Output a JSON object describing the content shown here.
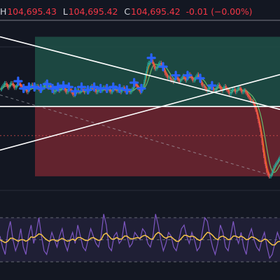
{
  "legend": {
    "high_label": "H",
    "high_value": "104,695.43",
    "low_label": "L",
    "low_value": "104,695.42",
    "close_label": "C",
    "close_value": "104,695.42",
    "change": "-0.01 (−0.00%)"
  },
  "colors": {
    "background": "#131722",
    "up": "#26a69a",
    "down": "#ef5350",
    "legend_value": "#f23645",
    "trendline": "#ffffff",
    "marker": "#2962ff",
    "oscillator_fast": "#7e57c2",
    "oscillator_slow": "#f7c548",
    "ma_fast": "#f57c00",
    "ma_slow": "#66bb6a",
    "profit_zone": "#1e4d45",
    "loss_zone": "#6b2530"
  },
  "chart_data": [
    {
      "type": "line",
      "panel": "price",
      "closes": [
        62,
        62,
        63,
        64,
        65,
        66,
        66,
        65,
        64,
        63,
        64,
        65,
        66,
        66,
        65,
        64,
        63,
        63,
        64,
        65,
        66,
        66,
        65,
        64,
        63,
        62,
        61,
        62,
        62,
        61,
        60,
        61,
        62,
        63,
        64,
        65,
        64,
        63,
        62,
        63,
        64,
        64,
        63,
        62,
        61,
        61,
        62,
        63,
        64,
        65,
        66,
        65,
        64,
        63,
        64,
        64,
        63,
        62,
        61,
        60,
        60,
        61,
        62,
        63,
        62,
        61,
        62,
        62,
        63,
        63,
        63,
        62,
        61,
        60,
        60,
        61,
        62,
        62,
        61,
        60,
        59,
        58,
        58,
        59,
        60,
        61,
        61,
        60,
        60,
        61,
        62,
        62,
        61,
        60,
        61,
        62,
        61,
        60,
        61,
        62,
        63,
        64,
        63,
        62,
        62,
        61,
        60,
        60,
        61,
        62,
        62,
        61,
        61,
        62,
        63,
        63,
        62,
        61,
        61,
        62,
        62,
        61,
        60,
        60,
        61,
        62,
        63,
        63,
        62,
        61,
        61,
        62,
        61,
        60,
        61,
        62,
        63,
        62,
        61,
        60,
        60,
        61,
        61,
        60,
        60,
        61,
        62,
        63,
        65,
        66,
        65,
        64,
        63,
        62,
        61,
        60,
        61,
        62,
        64,
        67,
        70,
        73,
        76,
        79,
        80,
        80,
        81,
        82,
        81,
        79,
        77,
        76,
        76,
        77,
        78,
        79,
        80,
        80,
        79,
        78,
        76,
        75,
        73,
        72,
        71,
        70,
        70,
        70,
        69,
        68,
        68,
        67,
        68,
        69,
        70,
        70,
        69,
        68,
        67,
        68,
        69,
        70,
        71,
        70,
        69,
        68,
        69,
        70,
        71,
        72,
        71,
        70,
        69,
        68,
        68,
        69,
        70,
        71,
        72,
        71,
        69,
        68,
        66,
        65,
        64,
        64,
        63,
        62,
        61,
        61,
        62,
        63,
        64,
        64,
        63,
        62,
        61,
        61,
        62,
        63,
        64,
        65,
        64,
        63,
        62,
        61,
        62,
        63,
        64,
        63,
        62,
        61,
        60,
        59,
        59,
        60,
        61,
        62,
        62,
        61,
        60,
        61,
        62,
        63,
        63,
        62,
        61,
        60,
        60,
        61,
        61,
        60,
        59,
        58,
        57,
        56,
        55,
        54,
        54,
        53,
        52,
        50,
        48,
        46,
        43,
        40,
        37,
        34,
        30,
        25,
        20,
        16,
        12,
        9,
        6,
        4,
        3,
        2,
        2,
        3,
        4,
        6,
        8,
        9,
        10,
        11,
        12,
        13,
        14,
        15
      ],
      "markers_at": [
        20,
        26,
        32,
        38,
        45,
        52,
        58,
        64,
        70,
        76,
        83,
        90,
        97,
        104,
        111,
        118,
        125,
        132,
        140,
        148,
        156,
        167,
        180,
        194,
        207,
        221,
        234
      ],
      "trendlines": [
        {
          "from": [
            0,
            98
          ],
          "to": [
            400,
            48
          ]
        },
        {
          "from": [
            0,
            20
          ],
          "to": [
            400,
            72
          ]
        },
        {
          "from": [
            0,
            50
          ],
          "to": [
            400,
            50
          ]
        }
      ],
      "zones": [
        {
          "kind": "profit",
          "from_index": 50,
          "to_index": 400,
          "low": 50,
          "high": 98
        },
        {
          "kind": "loss",
          "from_index": 50,
          "to_index": 400,
          "low": 2,
          "high": 50
        }
      ],
      "ylim": [
        0,
        105
      ],
      "grid": true
    },
    {
      "type": "line",
      "panel": "oscillator",
      "fast": [
        55,
        40,
        30,
        60,
        75,
        50,
        35,
        45,
        65,
        40,
        30,
        55,
        70,
        45,
        60,
        80,
        55,
        35,
        30,
        45,
        60,
        50,
        40,
        55,
        65,
        45,
        35,
        50,
        60,
        45,
        70,
        55,
        40,
        35,
        50,
        65,
        55,
        45,
        40,
        55,
        85,
        70,
        40,
        35,
        55,
        60,
        45,
        50,
        75,
        55,
        40,
        45,
        60,
        55,
        50,
        65,
        60,
        45,
        40,
        55,
        85,
        70,
        50,
        35,
        45,
        60,
        55,
        40,
        35,
        50,
        65,
        70,
        55,
        45,
        60,
        50,
        35,
        40,
        60,
        80,
        75,
        55,
        40,
        30,
        45,
        70,
        60,
        40,
        35,
        55,
        75,
        55,
        45,
        60,
        40,
        30,
        55,
        65,
        50,
        40,
        35,
        50,
        60,
        40,
        25,
        30,
        45,
        60,
        50
      ],
      "slow": [
        50,
        48,
        46,
        48,
        52,
        52,
        50,
        48,
        50,
        50,
        48,
        50,
        54,
        53,
        55,
        58,
        57,
        53,
        50,
        48,
        50,
        50,
        48,
        50,
        52,
        50,
        48,
        49,
        51,
        49,
        53,
        53,
        51,
        49,
        49,
        52,
        53,
        51,
        49,
        50,
        57,
        59,
        55,
        51,
        51,
        53,
        51,
        51,
        55,
        55,
        52,
        51,
        52,
        53,
        52,
        55,
        56,
        54,
        51,
        51,
        57,
        60,
        58,
        54,
        52,
        54,
        54,
        51,
        48,
        48,
        52,
        56,
        56,
        54,
        55,
        54,
        51,
        49,
        51,
        56,
        60,
        59,
        56,
        52,
        50,
        54,
        55,
        53,
        50,
        51,
        55,
        55,
        53,
        55,
        53,
        50,
        51,
        54,
        53,
        51,
        48,
        48,
        51,
        50,
        46,
        43,
        43,
        47,
        48
      ],
      "levels": [
        80,
        50,
        20
      ],
      "ylim": [
        0,
        100
      ]
    }
  ]
}
